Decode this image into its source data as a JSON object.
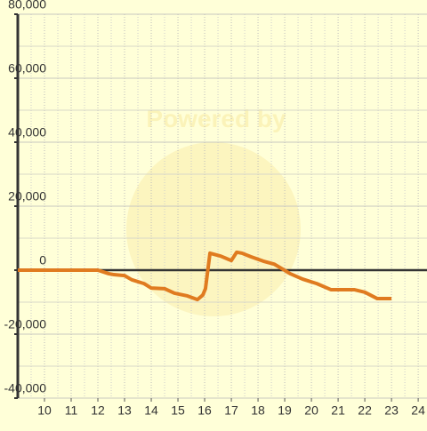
{
  "chart_data": {
    "type": "line",
    "watermark": "Powered by",
    "x": [
      9.0,
      12.0,
      12.4,
      12.6,
      13.0,
      13.27,
      13.73,
      14.0,
      14.5,
      14.87,
      15.33,
      15.73,
      15.93,
      16.03,
      16.2,
      16.6,
      17.0,
      17.2,
      17.4,
      17.73,
      18.2,
      18.6,
      18.93,
      19.2,
      19.67,
      20.2,
      20.73,
      21.6,
      22.0,
      22.47,
      23.0
    ],
    "series": [
      {
        "color": "#e07b20",
        "values": [
          0,
          0,
          -1100,
          -1400,
          -1700,
          -3000,
          -4200,
          -5600,
          -5800,
          -7200,
          -8000,
          -9200,
          -7800,
          -5800,
          5300,
          4400,
          3000,
          5600,
          5300,
          4200,
          2800,
          1900,
          300,
          -1100,
          -2800,
          -4200,
          -6100,
          -6100,
          -6900,
          -8900,
          -8900
        ]
      }
    ],
    "xlim": [
      9,
      24.33
    ],
    "xticks": [
      10,
      11,
      12,
      13,
      14,
      15,
      16,
      17,
      18,
      19,
      20,
      21,
      22,
      23,
      24
    ],
    "ylim": [
      -40000,
      80000
    ],
    "yticks": [
      {
        "value": -40000,
        "label": "-40,000"
      },
      {
        "value": -20000,
        "label": "-20,000"
      },
      0,
      {
        "value": 20000,
        "label": "20,000"
      },
      {
        "value": 40000,
        "label": "40,000"
      },
      {
        "value": 60000,
        "label": "60,000"
      },
      {
        "value": 80000,
        "label": "80,000"
      }
    ],
    "grid": true
  }
}
